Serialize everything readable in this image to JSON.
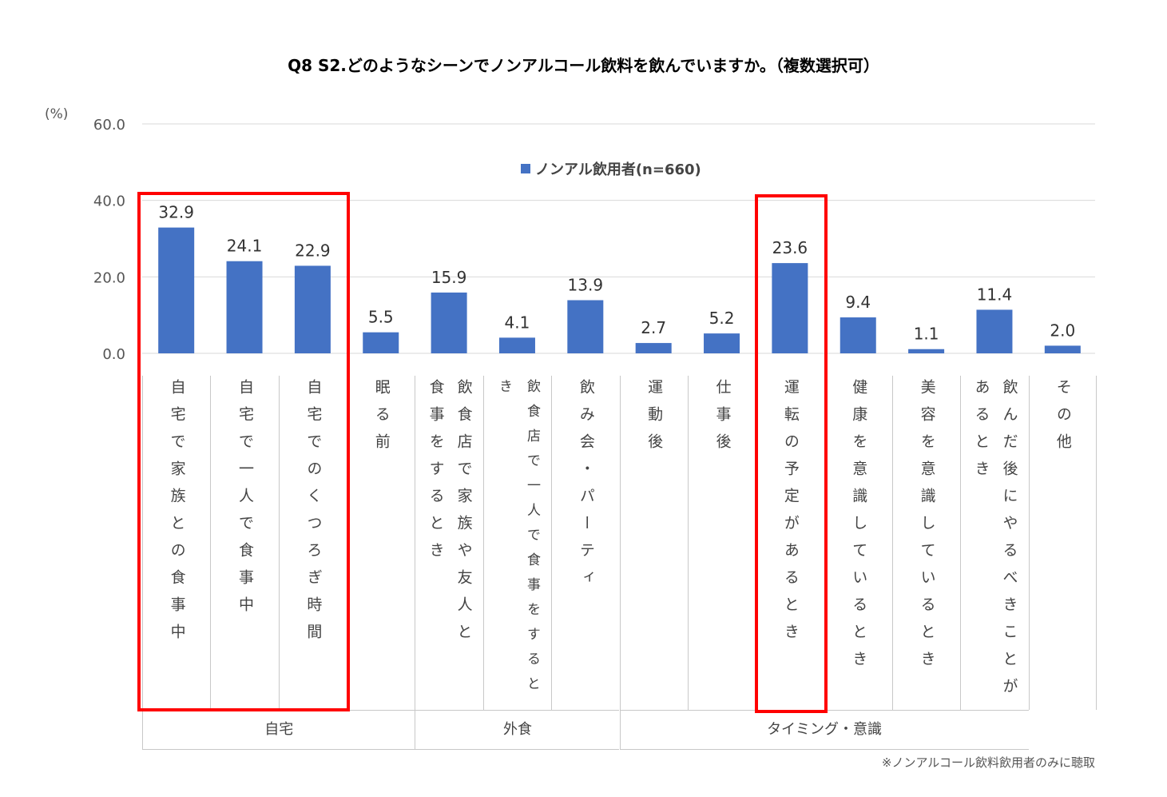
{
  "chart_data": {
    "type": "bar",
    "title": "Q8 S2.どのようなシーンでノンアルコール飲料を飲んでいますか。（複数選択可）",
    "ylabel": "(%)",
    "ylim": [
      0,
      60
    ],
    "yticks": [
      "0.0",
      "20.0",
      "40.0",
      "60.0"
    ],
    "grid": true,
    "legend_position": "top-center",
    "series": [
      {
        "name": "ノンアル飲用者(n=660)",
        "color": "#4472c4",
        "values": [
          32.9,
          24.1,
          22.9,
          5.5,
          15.9,
          4.1,
          13.9,
          2.7,
          5.2,
          23.6,
          9.4,
          1.1,
          11.4,
          2.0
        ],
        "labels": [
          "32.9",
          "24.1",
          "22.9",
          "5.5",
          "15.9",
          "4.1",
          "13.9",
          "2.7",
          "5.2",
          "23.6",
          "9.4",
          "1.1",
          "11.4",
          "2.0"
        ]
      }
    ],
    "categories": [
      {
        "lines": [
          "自宅で家族との食事中"
        ]
      },
      {
        "lines": [
          "自宅で一人で食事中"
        ]
      },
      {
        "lines": [
          "自宅でのくつろぎ時間"
        ]
      },
      {
        "lines": [
          "眠る前"
        ]
      },
      {
        "lines": [
          "飲食店で家族や友人と",
          "食事をするとき"
        ]
      },
      {
        "lines": [
          "飲食店で一人で食事をすると",
          "き"
        ]
      },
      {
        "lines": [
          "飲み会・パーティ"
        ]
      },
      {
        "lines": [
          "運動後"
        ]
      },
      {
        "lines": [
          "仕事後"
        ]
      },
      {
        "lines": [
          "運転の予定があるとき"
        ]
      },
      {
        "lines": [
          "健康を意識しているとき"
        ]
      },
      {
        "lines": [
          "美容を意識しているとき"
        ]
      },
      {
        "lines": [
          "飲んだ後にやるべきことが",
          "あるとき"
        ]
      },
      {
        "lines": [
          "その他"
        ]
      }
    ],
    "groups": [
      {
        "label": "自宅",
        "span": [
          0,
          3
        ]
      },
      {
        "label": "外食",
        "span": [
          4,
          6
        ]
      },
      {
        "label": "タイミング・意識",
        "span": [
          7,
          12
        ]
      }
    ],
    "highlighted": [
      [
        0,
        2
      ],
      [
        9,
        9
      ]
    ],
    "highlight_color": "#ff0000"
  },
  "footnote": "※ノンアルコール飲料飲用者のみに聴取"
}
